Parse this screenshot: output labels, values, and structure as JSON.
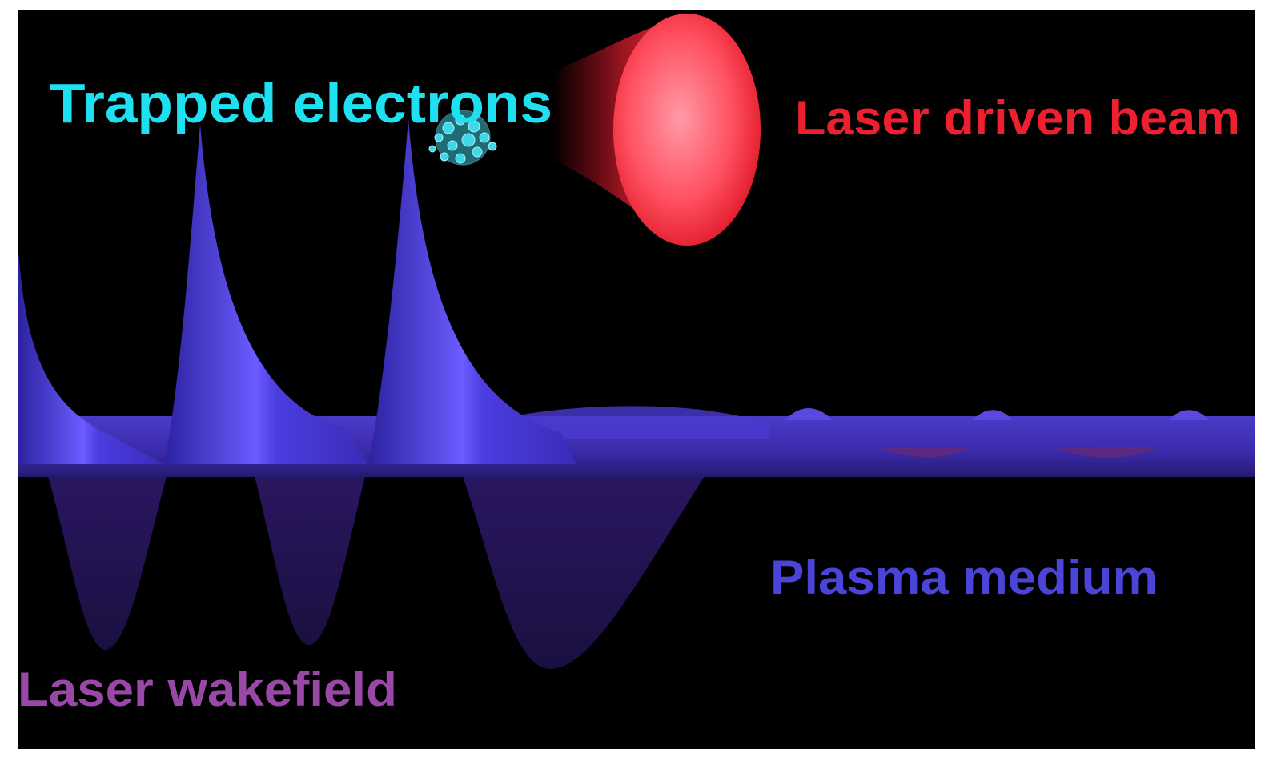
{
  "labels": {
    "trapped_electrons": "Trapped electrons",
    "laser_driven_beam": "Laser driven beam",
    "plasma_medium": "Plasma medium",
    "laser_wakefield": "Laser wakefield"
  }
}
